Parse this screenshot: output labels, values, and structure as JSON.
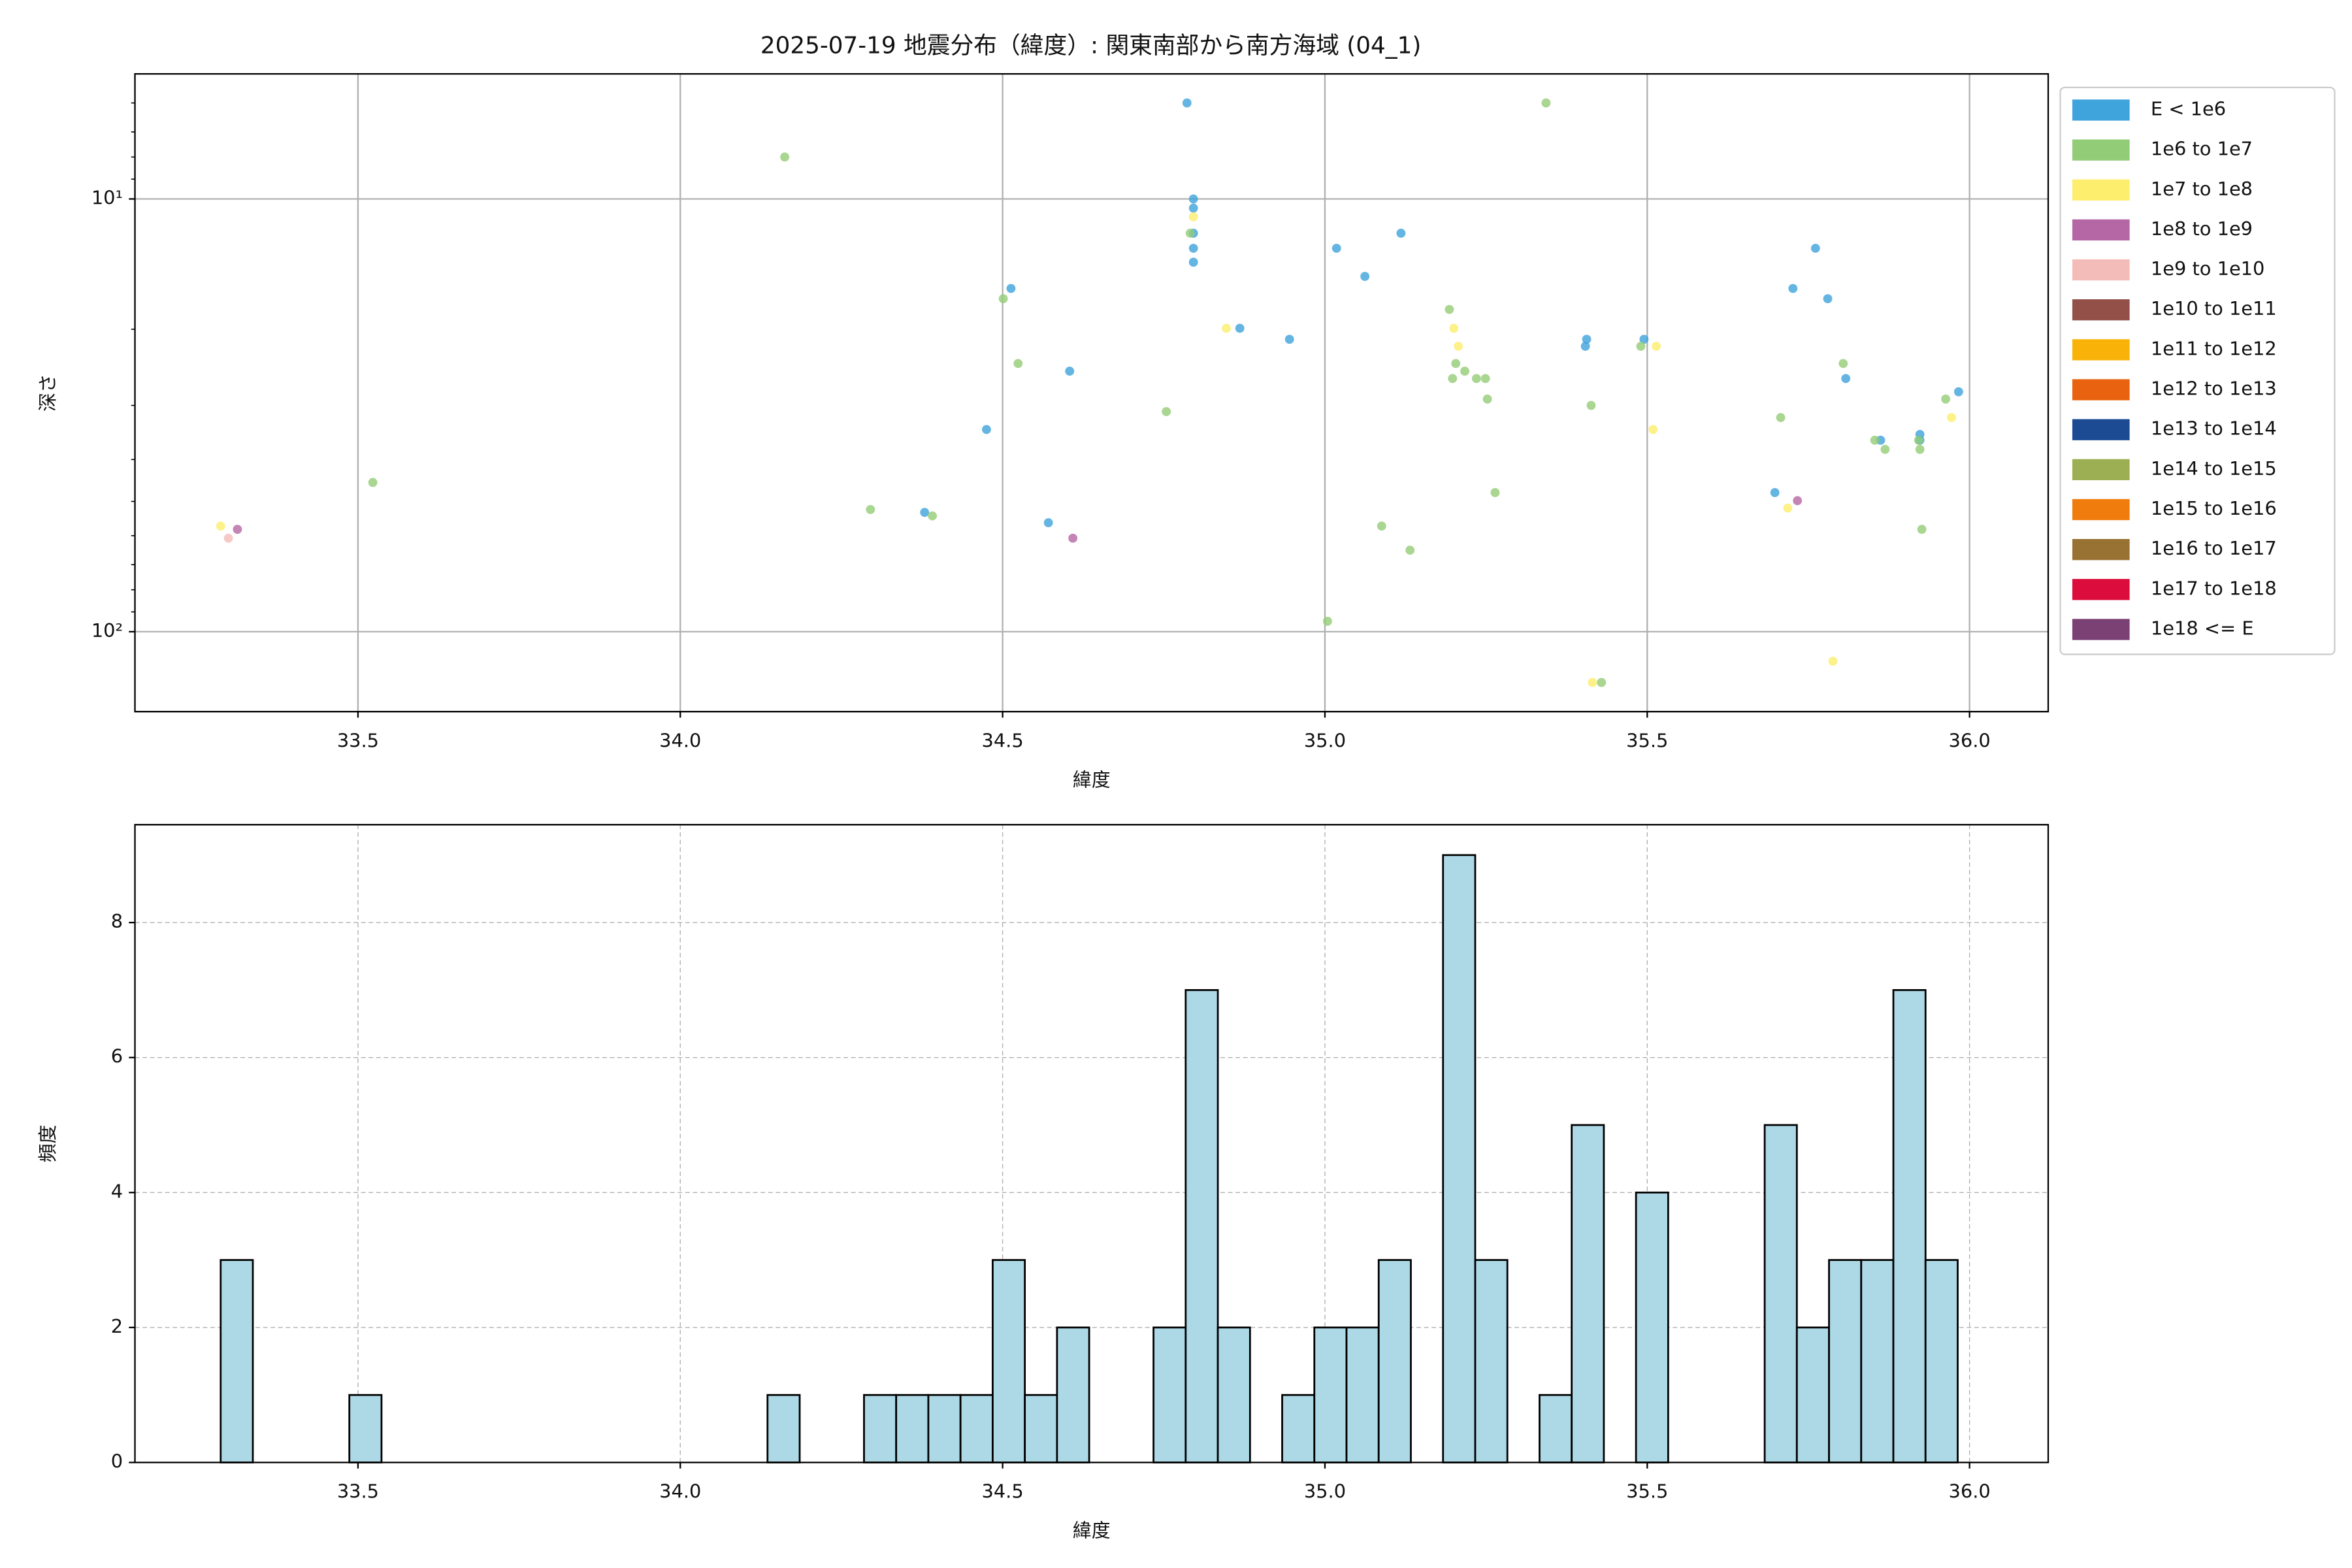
{
  "chart_data": [
    {
      "type": "scatter",
      "title": "2025-07-19 地震分布（緯度）: 関東南部から南方海域 (04_1)",
      "x_label": "緯度",
      "y_label": "深さ",
      "xlim": [
        33.154,
        36.122
      ],
      "ylim": [
        5.14,
        153
      ],
      "yscale": "log",
      "y_inverted": true,
      "xticks": [
        33.5,
        {
          "value": 34,
          "label": "34.0"
        },
        34.5,
        {
          "value": 35,
          "label": "35.0"
        },
        35.5,
        {
          "value": 36,
          "label": "36.0"
        }
      ],
      "yticks": [
        {
          "value": 10,
          "label": "10¹"
        },
        {
          "value": 100,
          "label": "10²"
        }
      ],
      "yticks_minor": [
        6,
        7,
        8,
        9,
        20,
        30,
        40,
        50,
        60,
        70,
        80,
        90
      ],
      "grid": true,
      "grid_style": "solid",
      "legend": "outside right",
      "series": [
        {
          "name": "E < 1e6",
          "color": "#3fa3dc",
          "x": [
            34.786,
            34.796,
            34.796,
            34.796,
            34.796,
            34.796,
            34.513,
            35.018,
            35.118,
            35.062,
            34.868,
            34.945,
            34.604,
            34.475,
            34.379,
            34.571,
            35.406,
            35.404,
            35.495,
            35.761,
            35.726,
            35.78,
            35.808,
            35.983,
            35.862,
            35.923,
            35.923,
            35.698
          ],
          "values": [
            6.0,
            10,
            10.5,
            12.0,
            13.0,
            14.0,
            16.1,
            13.0,
            12.0,
            15.1,
            19.9,
            21.1,
            25.0,
            34.1,
            53,
            56,
            21.1,
            21.9,
            21.1,
            13.0,
            16.1,
            17.0,
            26.0,
            27.9,
            36.1,
            35,
            36.1,
            47.7
          ]
        },
        {
          "name": "1e6 to 1e7",
          "color": "#93cc76",
          "x": [
            34.162,
            35.343,
            34.501,
            34.524,
            34.791,
            33.523,
            34.295,
            34.391,
            34.754,
            35.193,
            35.203,
            35.198,
            35.217,
            35.235,
            35.249,
            35.252,
            35.264,
            35.413,
            35.088,
            35.132,
            35.004,
            35.49,
            35.429,
            35.707,
            35.804,
            35.853,
            35.869,
            35.921,
            35.923,
            35.963,
            35.926
          ],
          "values": [
            8.0,
            6.0,
            17.0,
            24.0,
            12.0,
            45.2,
            52.2,
            54,
            31.0,
            18.0,
            24,
            26,
            25,
            26,
            26,
            29.0,
            47.7,
            30.0,
            57,
            64.8,
            94.6,
            21.9,
            131,
            32,
            24,
            36.1,
            37.9,
            36.1,
            37.9,
            29,
            58
          ]
        },
        {
          "name": "1e7 to 1e8",
          "color": "#fdee6d",
          "x": [
            33.287,
            34.796,
            34.847,
            35.2,
            35.207,
            35.514,
            35.509,
            35.415,
            35.972,
            35.718,
            35.788
          ],
          "values": [
            57,
            11.0,
            19.9,
            19.9,
            21.9,
            21.9,
            34.1,
            131,
            32,
            51.8,
            117
          ]
        },
        {
          "name": "1e8 to 1e9",
          "color": "#b566a4",
          "x": [
            33.313,
            34.609,
            35.733
          ],
          "values": [
            58,
            60.8,
            49.8
          ]
        },
        {
          "name": "1e9 to 1e10",
          "color": "#f4bcb8",
          "x": [
            33.299
          ],
          "values": [
            60.8
          ]
        },
        {
          "name": "1e10 to 1e11",
          "color": "#935048",
          "x": [],
          "values": []
        },
        {
          "name": "1e11 to 1e12",
          "color": "#f8b208",
          "x": [],
          "values": []
        },
        {
          "name": "1e12 to 1e13",
          "color": "#e8620f",
          "x": [],
          "values": []
        },
        {
          "name": "1e13 to 1e14",
          "color": "#1c4a93",
          "x": [],
          "values": []
        },
        {
          "name": "1e14 to 1e15",
          "color": "#9caf52",
          "x": [],
          "values": []
        },
        {
          "name": "1e15 to 1e16",
          "color": "#f07c0e",
          "x": [],
          "values": []
        },
        {
          "name": "1e16 to 1e17",
          "color": "#987233",
          "x": [],
          "values": []
        },
        {
          "name": "1e17 to 1e18",
          "color": "#dc0d3c",
          "x": [],
          "values": []
        },
        {
          "name": "1e18 <= E",
          "color": "#7b4074",
          "x": [],
          "values": []
        }
      ]
    },
    {
      "type": "histogram",
      "x_label": "緯度",
      "y_label": "頻度",
      "xlim": [
        33.154,
        36.122
      ],
      "ylim": [
        0,
        9.45
      ],
      "xticks": [
        33.5,
        {
          "value": 34,
          "label": "34.0"
        },
        34.5,
        {
          "value": 35,
          "label": "35.0"
        },
        35.5,
        {
          "value": 36,
          "label": "36.0"
        }
      ],
      "yticks": [
        0,
        2,
        4,
        6,
        8
      ],
      "grid": true,
      "grid_style": "dashed",
      "color": "#add8e6",
      "edge_color": "#000000",
      "bins": [
        33.287,
        33.3369,
        33.3868,
        33.4367,
        33.4866,
        33.5365,
        33.5864,
        33.6363,
        33.6862,
        33.7361,
        33.786,
        33.8359,
        33.8858,
        33.9357,
        33.9856,
        34.0355,
        34.0854,
        34.1353,
        34.1852,
        34.2351,
        34.285,
        34.3349,
        34.3848,
        34.4347,
        34.4846,
        34.5345,
        34.5844,
        34.6343,
        34.6842,
        34.7341,
        34.784,
        34.8339,
        34.8838,
        34.9337,
        34.9836,
        35.0335,
        35.0834,
        35.1333,
        35.1832,
        35.2331,
        35.283,
        35.3329,
        35.3828,
        35.4327,
        35.4826,
        35.5325,
        35.5824,
        35.6323,
        35.6822,
        35.7321,
        35.782,
        35.8319,
        35.8818,
        35.9317,
        35.9816
      ],
      "values": [
        3,
        0,
        0,
        0,
        1,
        0,
        0,
        0,
        0,
        0,
        0,
        0,
        0,
        0,
        0,
        0,
        0,
        1,
        0,
        0,
        1,
        1,
        1,
        1,
        3,
        1,
        2,
        0,
        0,
        2,
        7,
        2,
        0,
        1,
        2,
        2,
        3,
        0,
        9,
        3,
        0,
        1,
        5,
        0,
        4,
        0,
        0,
        0,
        5,
        2,
        3,
        3,
        7,
        3
      ]
    }
  ]
}
